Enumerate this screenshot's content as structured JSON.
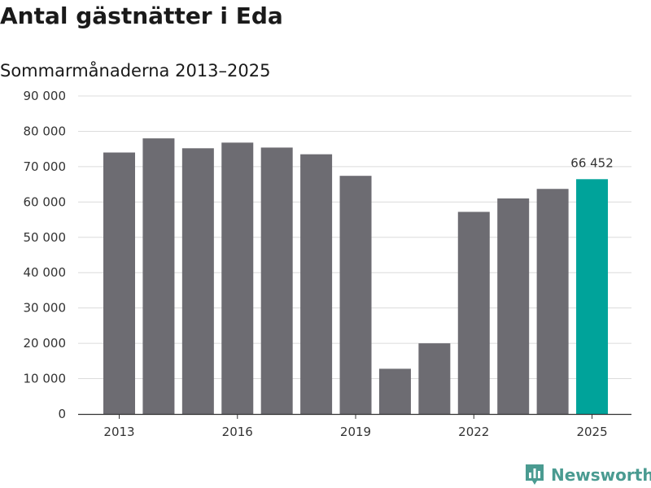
{
  "header": {
    "title": "Antal gästnätter i Eda",
    "subtitle": "Sommarmånaderna 2013–2025"
  },
  "brand": {
    "name": "Newsworthy",
    "icon": "newsworthy-logo-icon"
  },
  "colors": {
    "bar": "#6d6c72",
    "highlight": "#00a39a",
    "grid": "#dcdcdc",
    "axis": "#333333"
  },
  "chart_data": {
    "type": "bar",
    "categories": [
      "2013",
      "2014",
      "2015",
      "2016",
      "2017",
      "2018",
      "2019",
      "2020",
      "2021",
      "2022",
      "2023",
      "2024",
      "2025"
    ],
    "values": [
      74000,
      78000,
      75200,
      76800,
      75400,
      73500,
      67400,
      12800,
      20000,
      57200,
      61000,
      63700,
      66452
    ],
    "highlight_index": 12,
    "x_tick_labels": [
      "2013",
      "2016",
      "2019",
      "2022",
      "2025"
    ],
    "y_tick_labels": [
      "0",
      "10 000",
      "20 000",
      "30 000",
      "40 000",
      "50 000",
      "60 000",
      "70 000",
      "80 000",
      "90 000"
    ],
    "ylim": [
      0,
      90000
    ],
    "grid": true,
    "data_labels": [
      {
        "category": "2025",
        "text": "66 452"
      }
    ]
  }
}
